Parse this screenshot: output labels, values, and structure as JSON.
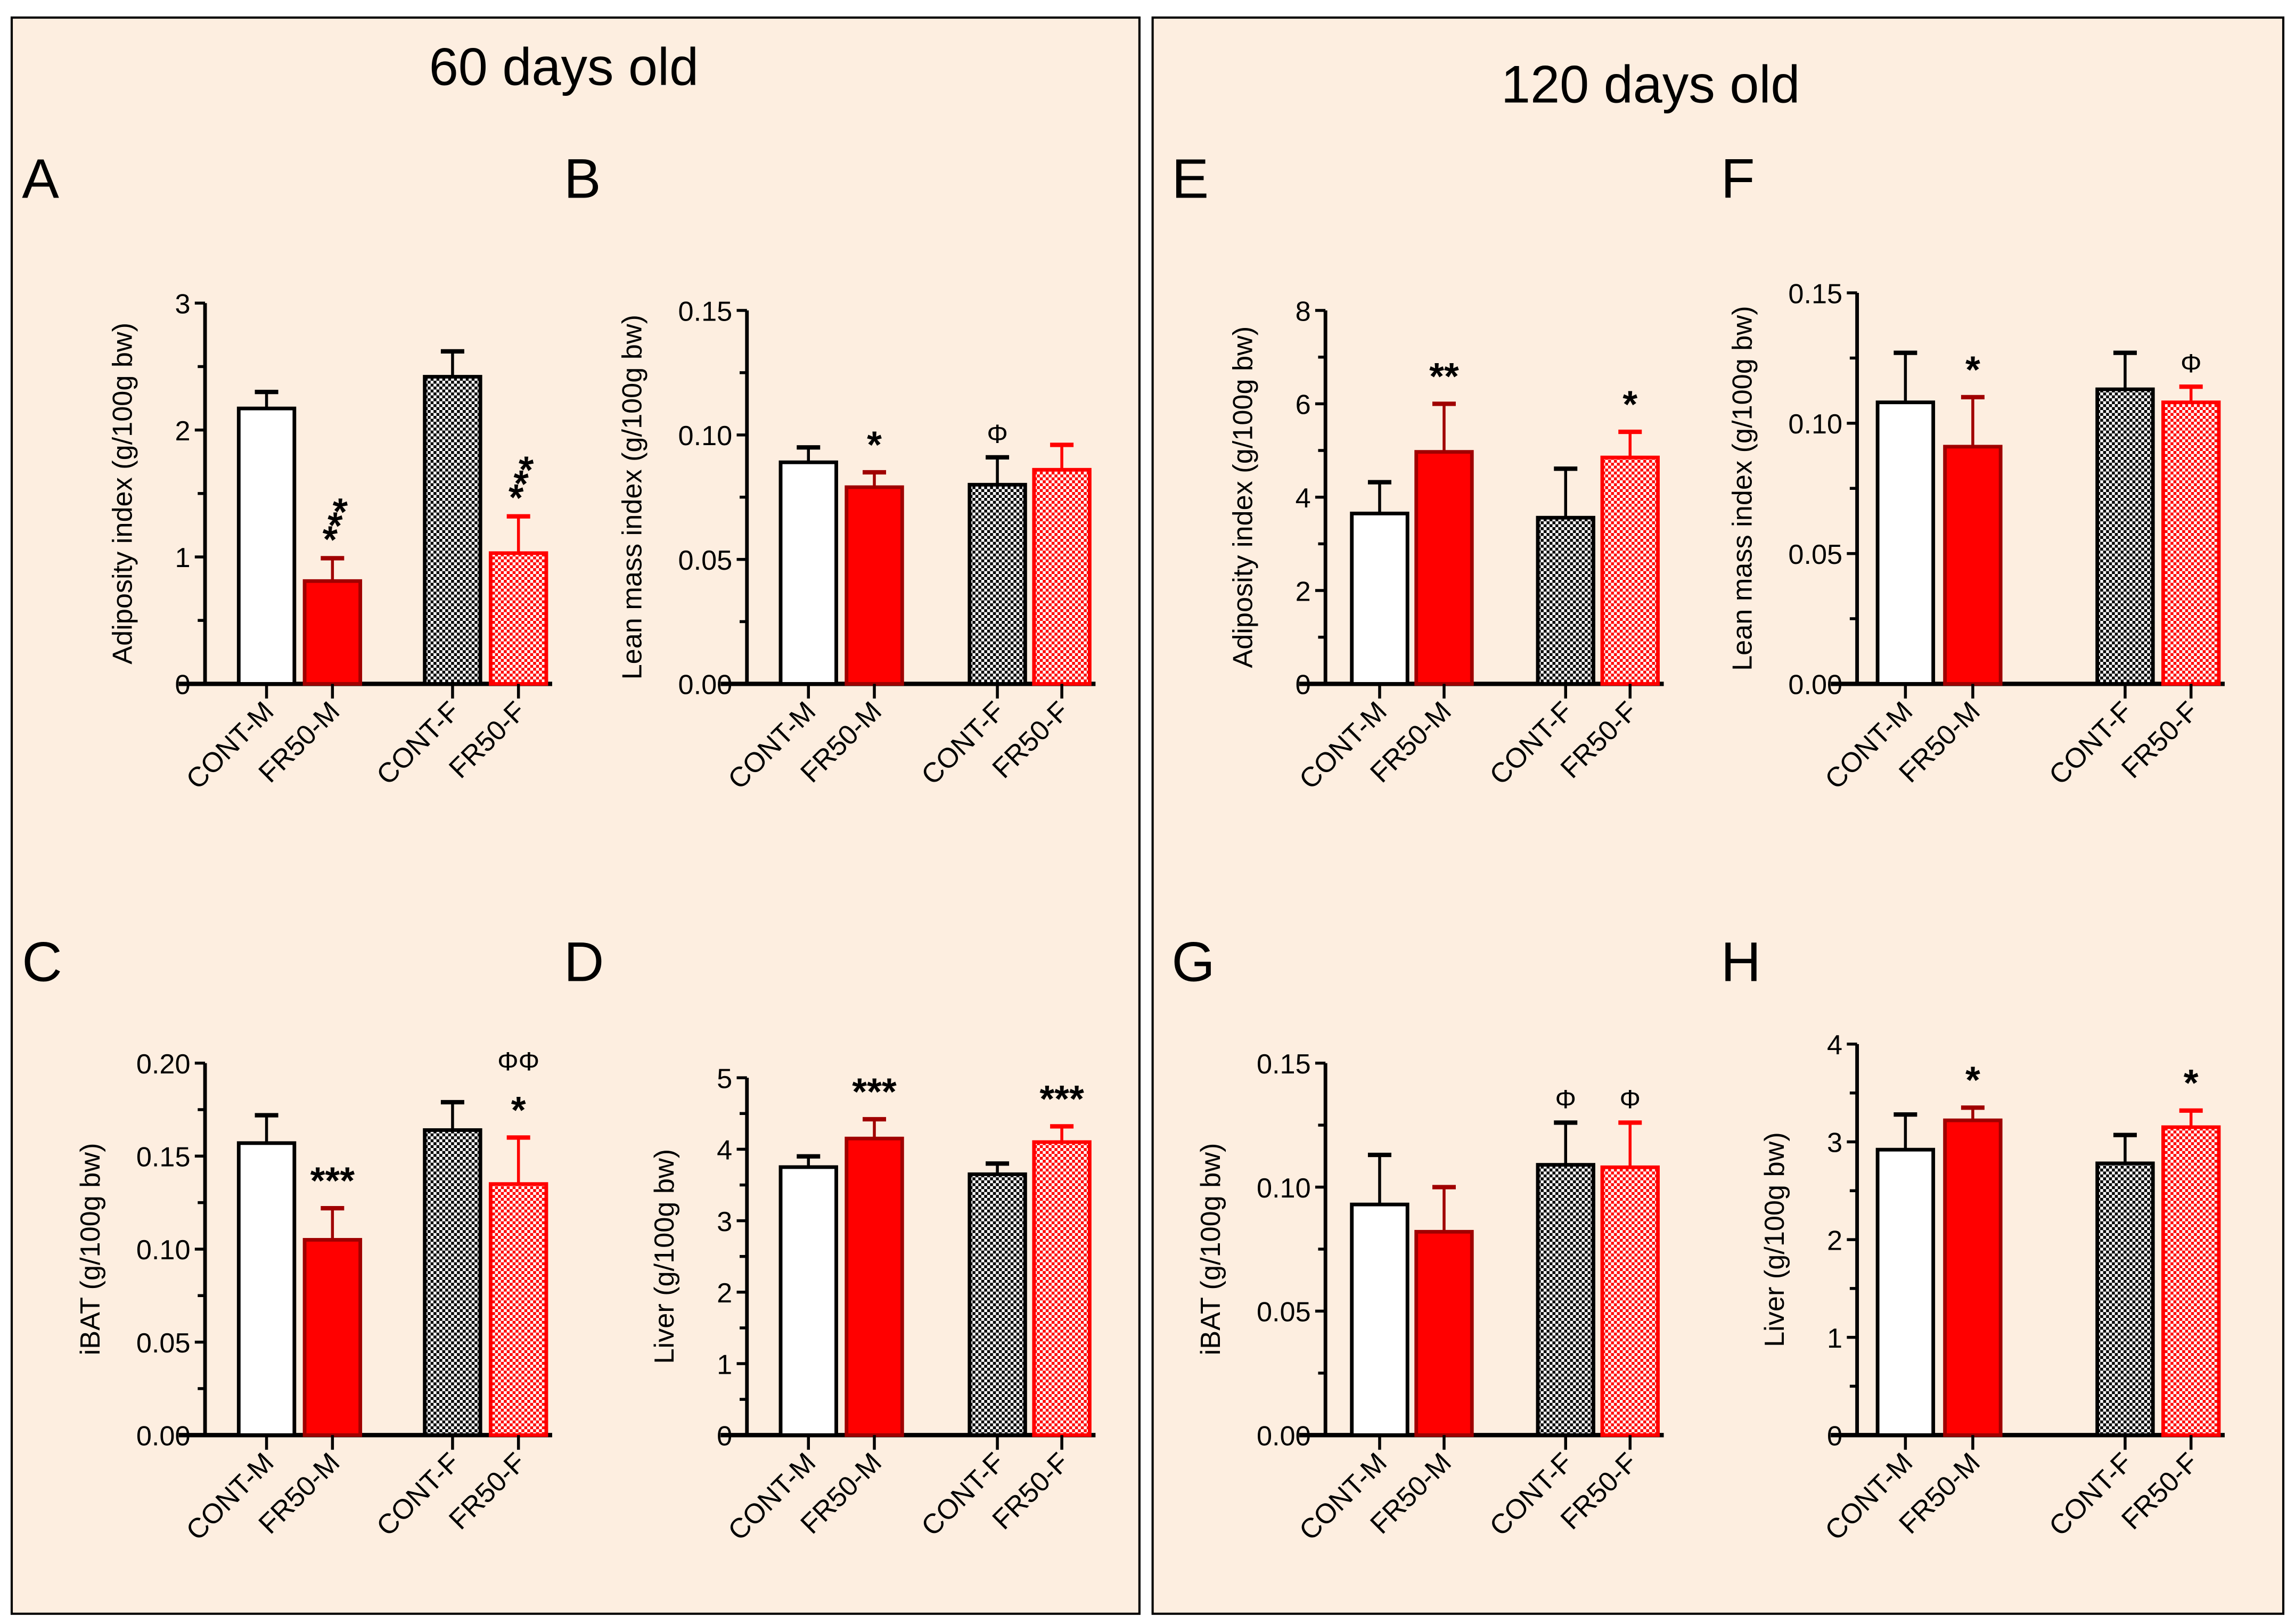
{
  "groups": [
    {
      "title": "60 days old",
      "panels": [
        0,
        1,
        2,
        3
      ]
    },
    {
      "title": "120 days old",
      "panels": [
        4,
        5,
        6,
        7
      ]
    }
  ],
  "colors": {
    "background": "#fdeee0",
    "red": "#ff0000",
    "dark_red": "#a00000",
    "black": "#000000"
  },
  "chart_data": [
    {
      "letter": "A",
      "type": "bar",
      "ylabel": "Adiposity index (g/100g bw)",
      "ylim": [
        0,
        3
      ],
      "yticks": [
        0,
        1,
        2,
        3
      ],
      "yticklabels": [
        "0",
        "1",
        "2",
        "3"
      ],
      "categories": [
        "CONT-M",
        "FR50-M",
        "CONT-F",
        "FR50-F"
      ],
      "values": [
        2.17,
        0.81,
        2.42,
        1.03
      ],
      "errors": [
        0.13,
        0.18,
        0.2,
        0.29
      ],
      "annotations": [
        "",
        "***",
        "",
        "***"
      ]
    },
    {
      "letter": "B",
      "type": "bar",
      "ylabel": "Lean mass index (g/100g bw)",
      "ylim": [
        0,
        0.15
      ],
      "yticks": [
        0,
        0.05,
        0.1,
        0.15
      ],
      "yticklabels": [
        "0.00",
        "0.05",
        "0.10",
        "0.15"
      ],
      "categories": [
        "CONT-M",
        "FR50-M",
        "CONT-F",
        "FR50-F"
      ],
      "values": [
        0.089,
        0.079,
        0.08,
        0.086
      ],
      "errors": [
        0.006,
        0.006,
        0.011,
        0.01
      ],
      "annotations": [
        "",
        "*",
        "Φ",
        ""
      ]
    },
    {
      "letter": "C",
      "type": "bar",
      "ylabel": "iBAT (g/100g bw)",
      "ylim": [
        0,
        0.2
      ],
      "yticks": [
        0,
        0.05,
        0.1,
        0.15,
        0.2
      ],
      "yticklabels": [
        "0.00",
        "0.05",
        "0.10",
        "0.15",
        "0.20"
      ],
      "categories": [
        "CONT-M",
        "FR50-M",
        "CONT-F",
        "FR50-F"
      ],
      "values": [
        0.157,
        0.105,
        0.164,
        0.135
      ],
      "errors": [
        0.015,
        0.017,
        0.015,
        0.025
      ],
      "annotations": [
        "",
        "***",
        "",
        "ΦΦ\n*"
      ]
    },
    {
      "letter": "D",
      "type": "bar",
      "ylabel": "Liver (g/100g bw)",
      "ylim": [
        0,
        5
      ],
      "yticks": [
        0,
        1,
        2,
        3,
        4,
        5
      ],
      "yticklabels": [
        "0",
        "1",
        "2",
        "3",
        "4",
        "5"
      ],
      "categories": [
        "CONT-M",
        "FR50-M",
        "CONT-F",
        "FR50-F"
      ],
      "values": [
        3.75,
        4.15,
        3.65,
        4.1
      ],
      "errors": [
        0.15,
        0.27,
        0.15,
        0.22
      ],
      "annotations": [
        "",
        "***",
        "",
        "***"
      ]
    },
    {
      "letter": "E",
      "type": "bar",
      "ylabel": "Adiposity index (g/100g bw)",
      "ylim": [
        0,
        8
      ],
      "yticks": [
        0,
        2,
        4,
        6,
        8
      ],
      "yticklabels": [
        "0",
        "2",
        "4",
        "6",
        "8"
      ],
      "categories": [
        "CONT-M",
        "FR50-M",
        "CONT-F",
        "FR50-F"
      ],
      "values": [
        3.65,
        4.97,
        3.56,
        4.85
      ],
      "errors": [
        0.67,
        1.03,
        1.05,
        0.55
      ],
      "annotations": [
        "",
        "**",
        "",
        "*"
      ]
    },
    {
      "letter": "F",
      "type": "bar",
      "ylabel": "Lean mass index (g/100g bw)",
      "ylim": [
        0,
        0.15
      ],
      "yticks": [
        0,
        0.05,
        0.1,
        0.15
      ],
      "yticklabels": [
        "0.00",
        "0.05",
        "0.10",
        "0.15"
      ],
      "categories": [
        "CONT-M",
        "FR50-M",
        "CONT-F",
        "FR50-F"
      ],
      "values": [
        0.108,
        0.091,
        0.113,
        0.108
      ],
      "errors": [
        0.019,
        0.019,
        0.014,
        0.006
      ],
      "annotations": [
        "",
        "*",
        "",
        "Φ"
      ]
    },
    {
      "letter": "G",
      "type": "bar",
      "ylabel": "iBAT (g/100g bw)",
      "ylim": [
        0,
        0.15
      ],
      "yticks": [
        0,
        0.05,
        0.1,
        0.15
      ],
      "yticklabels": [
        "0.00",
        "0.05",
        "0.10",
        "0.15"
      ],
      "categories": [
        "CONT-M",
        "FR50-M",
        "CONT-F",
        "FR50-F"
      ],
      "values": [
        0.093,
        0.082,
        0.109,
        0.108
      ],
      "errors": [
        0.02,
        0.018,
        0.017,
        0.018
      ],
      "annotations": [
        "",
        "",
        "Φ",
        "Φ"
      ]
    },
    {
      "letter": "H",
      "type": "bar",
      "ylabel": "Liver (g/100g bw)",
      "ylim": [
        0,
        4
      ],
      "yticks": [
        0,
        1,
        2,
        3,
        4
      ],
      "yticklabels": [
        "0",
        "1",
        "2",
        "3",
        "4"
      ],
      "categories": [
        "CONT-M",
        "FR50-M",
        "CONT-F",
        "FR50-F"
      ],
      "values": [
        2.92,
        3.22,
        2.78,
        3.15
      ],
      "errors": [
        0.36,
        0.13,
        0.29,
        0.17
      ],
      "annotations": [
        "",
        "*",
        "",
        "*"
      ]
    }
  ]
}
